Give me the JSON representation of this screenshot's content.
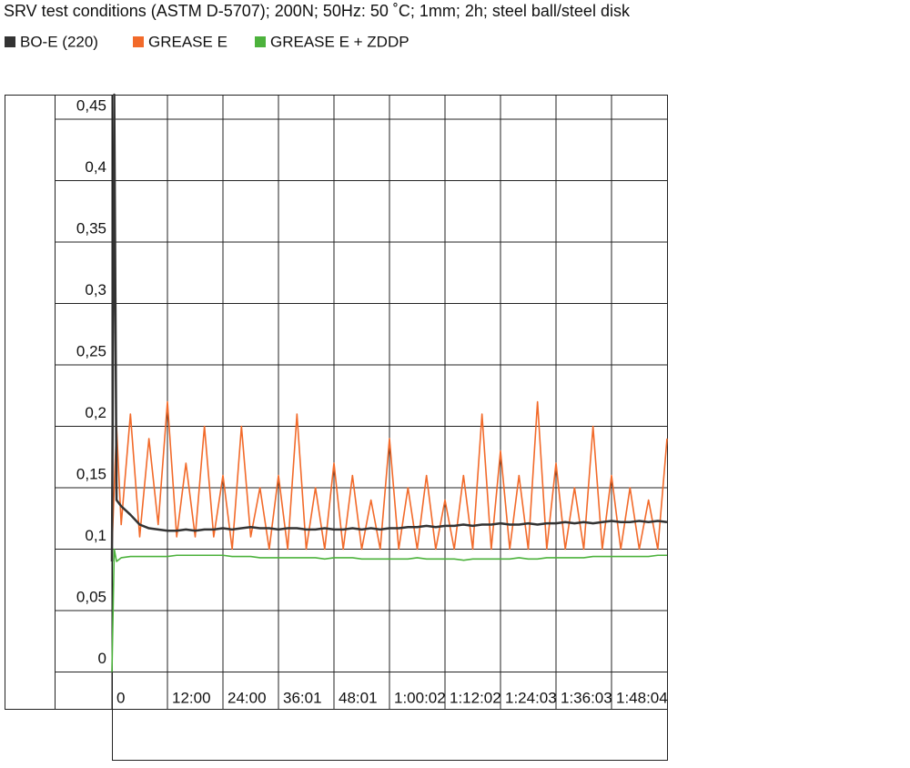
{
  "chart_data": {
    "type": "line",
    "title": "SRV test conditions (ASTM D-5707); 200N; 50Hz: 50 ˚C; 1mm; 2h; steel ball/steel disk",
    "x": [
      0,
      0.5,
      1,
      2,
      4,
      6,
      8,
      10,
      12,
      14,
      16,
      18,
      20,
      22,
      24,
      26,
      28,
      30,
      32,
      34,
      36,
      38,
      40,
      42,
      44,
      46,
      48,
      50,
      52,
      54,
      56,
      58,
      60,
      62,
      64,
      66,
      68,
      70,
      72,
      74,
      76,
      78,
      80,
      82,
      84,
      86,
      88,
      90,
      92,
      94,
      96,
      98,
      100,
      102,
      104,
      106,
      108,
      110,
      112,
      114,
      116,
      118,
      120
    ],
    "series": [
      {
        "name": "BO-E (220)",
        "color": "#333333",
        "values": [
          0.09,
          0.47,
          0.14,
          0.135,
          0.128,
          0.12,
          0.117,
          0.116,
          0.115,
          0.115,
          0.116,
          0.115,
          0.116,
          0.116,
          0.117,
          0.116,
          0.117,
          0.118,
          0.117,
          0.117,
          0.116,
          0.117,
          0.117,
          0.116,
          0.116,
          0.117,
          0.116,
          0.116,
          0.117,
          0.116,
          0.117,
          0.116,
          0.117,
          0.117,
          0.118,
          0.118,
          0.119,
          0.118,
          0.119,
          0.119,
          0.12,
          0.119,
          0.12,
          0.12,
          0.121,
          0.12,
          0.12,
          0.121,
          0.12,
          0.121,
          0.121,
          0.122,
          0.121,
          0.122,
          0.121,
          0.122,
          0.123,
          0.122,
          0.122,
          0.123,
          0.122,
          0.123,
          0.122
        ]
      },
      {
        "name": "GREASE E",
        "color": "#f26a2a",
        "values": [
          0.1,
          0.15,
          0.2,
          0.12,
          0.21,
          0.11,
          0.19,
          0.12,
          0.22,
          0.11,
          0.17,
          0.11,
          0.2,
          0.11,
          0.16,
          0.1,
          0.2,
          0.11,
          0.15,
          0.1,
          0.16,
          0.1,
          0.21,
          0.1,
          0.15,
          0.1,
          0.17,
          0.1,
          0.16,
          0.1,
          0.14,
          0.1,
          0.19,
          0.1,
          0.15,
          0.1,
          0.16,
          0.1,
          0.14,
          0.1,
          0.16,
          0.1,
          0.21,
          0.1,
          0.18,
          0.1,
          0.16,
          0.1,
          0.22,
          0.1,
          0.17,
          0.1,
          0.15,
          0.1,
          0.2,
          0.1,
          0.16,
          0.1,
          0.15,
          0.1,
          0.14,
          0.1,
          0.19
        ]
      },
      {
        "name": "GREASE E + ZDDP",
        "color": "#4cb23c",
        "values": [
          0,
          0.1,
          0.09,
          0.093,
          0.094,
          0.094,
          0.094,
          0.094,
          0.094,
          0.095,
          0.095,
          0.095,
          0.095,
          0.095,
          0.095,
          0.094,
          0.094,
          0.094,
          0.093,
          0.093,
          0.093,
          0.093,
          0.093,
          0.093,
          0.093,
          0.092,
          0.093,
          0.093,
          0.093,
          0.092,
          0.092,
          0.092,
          0.092,
          0.092,
          0.092,
          0.093,
          0.092,
          0.092,
          0.092,
          0.092,
          0.091,
          0.092,
          0.092,
          0.092,
          0.092,
          0.092,
          0.093,
          0.092,
          0.092,
          0.093,
          0.093,
          0.093,
          0.093,
          0.093,
          0.094,
          0.094,
          0.094,
          0.094,
          0.094,
          0.094,
          0.094,
          0.095,
          0.095
        ]
      }
    ],
    "xlim": [
      0,
      120
    ],
    "xticks": [
      0,
      {
        "value": 12,
        "label": "12:00"
      },
      {
        "value": 24,
        "label": "24:00"
      },
      {
        "value": 36,
        "label": "36:01"
      },
      {
        "value": 48,
        "label": "48:01"
      },
      {
        "value": 60,
        "label": "1:00:02"
      },
      {
        "value": 72,
        "label": "1:12:02"
      },
      {
        "value": 84,
        "label": "1:24:03"
      },
      {
        "value": 96,
        "label": "1:36:03"
      },
      {
        "value": 108,
        "label": "1:48:04"
      }
    ],
    "ylim": [
      -0.03,
      0.47
    ],
    "yticks": [
      0,
      {
        "value": 0.05,
        "label": "0,05"
      },
      {
        "value": 0.1,
        "label": "0,1"
      },
      {
        "value": 0.15,
        "label": "0,15"
      },
      {
        "value": 0.2,
        "label": "0,2"
      },
      {
        "value": 0.25,
        "label": "0,25"
      },
      {
        "value": 0.3,
        "label": "0,3"
      },
      {
        "value": 0.35,
        "label": "0,35"
      },
      {
        "value": 0.4,
        "label": "0,4"
      },
      {
        "value": 0.45,
        "label": "0,45"
      }
    ],
    "grid": true
  }
}
